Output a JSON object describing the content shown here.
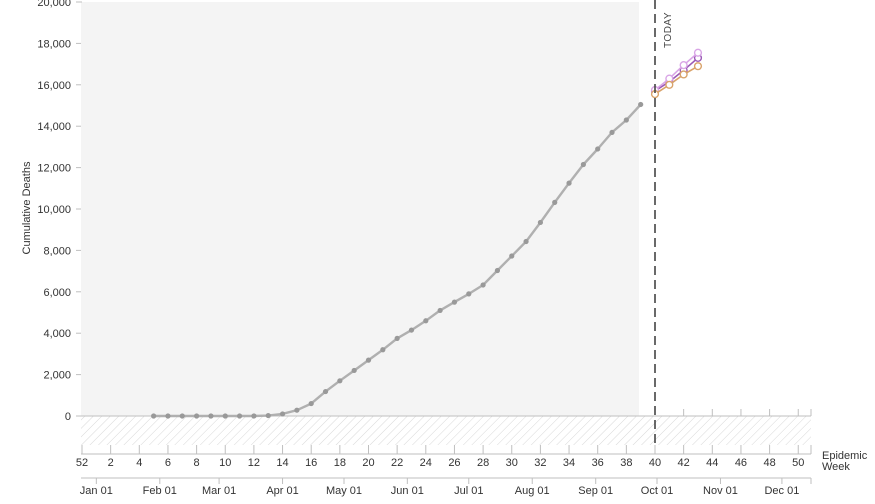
{
  "chart_data": {
    "type": "line",
    "ylabel": "Cumulative Deaths",
    "xlabel": "Epidemic\nWeek",
    "ylim": [
      0,
      20000
    ],
    "y_ticks": [
      0,
      2000,
      4000,
      6000,
      8000,
      10000,
      12000,
      14000,
      16000,
      18000,
      20000
    ],
    "y_tick_labels": [
      "0",
      "2,000",
      "4,000",
      "6,000",
      "8,000",
      "10,000",
      "12,000",
      "14,000",
      "16,000",
      "18,000",
      "20,000"
    ],
    "week_ticks": [
      52,
      2,
      4,
      6,
      8,
      10,
      12,
      14,
      16,
      18,
      20,
      22,
      24,
      26,
      28,
      30,
      32,
      34,
      36,
      38,
      40,
      42,
      44,
      46,
      48,
      50
    ],
    "month_labels": [
      {
        "label": "Jan 01",
        "week": 1.0
      },
      {
        "label": "Feb 01",
        "week": 5.43
      },
      {
        "label": "Mar 01",
        "week": 9.57
      },
      {
        "label": "Apr 01",
        "week": 14.0
      },
      {
        "label": "May 01",
        "week": 18.29
      },
      {
        "label": "Jun 01",
        "week": 22.71
      },
      {
        "label": "Jul 01",
        "week": 27.0
      },
      {
        "label": "Aug 01",
        "week": 31.43
      },
      {
        "label": "Sep 01",
        "week": 35.86
      },
      {
        "label": "Oct 01",
        "week": 40.14
      },
      {
        "label": "Nov 01",
        "week": 44.57
      },
      {
        "label": "Dec 01",
        "week": 48.86
      }
    ],
    "today_label": "TODAY",
    "today_week": 40,
    "observed_end_week": 39,
    "grid": false,
    "series": [
      {
        "color": "#b0b0b0",
        "x": [
          5,
          6,
          7,
          8,
          9,
          10,
          11,
          12,
          13,
          14,
          15,
          16,
          17,
          18,
          19,
          20,
          21,
          22,
          23,
          24,
          25,
          26,
          27,
          28,
          29,
          30,
          31,
          32,
          33,
          34,
          35,
          36,
          37,
          38,
          39
        ],
        "values": [
          0,
          0,
          0,
          0,
          0,
          0,
          0,
          0,
          20,
          100,
          280,
          600,
          1180,
          1700,
          2200,
          2700,
          3200,
          3750,
          4150,
          4600,
          5100,
          5500,
          5900,
          6330,
          7030,
          7730,
          8430,
          9350,
          10320,
          11250,
          12150,
          12900,
          13700,
          14300,
          15050
        ]
      },
      {
        "color": "#9b59b6",
        "x": [
          40,
          41,
          42,
          43
        ],
        "values": [
          15700,
          16150,
          16700,
          17300
        ]
      },
      {
        "color": "#d9a5e6",
        "x": [
          40,
          41,
          42,
          43
        ],
        "values": [
          15750,
          16300,
          16950,
          17550
        ]
      },
      {
        "color": "#d9a36b",
        "x": [
          40,
          41,
          42,
          43
        ],
        "values": [
          15550,
          16000,
          16500,
          16900
        ]
      }
    ]
  }
}
